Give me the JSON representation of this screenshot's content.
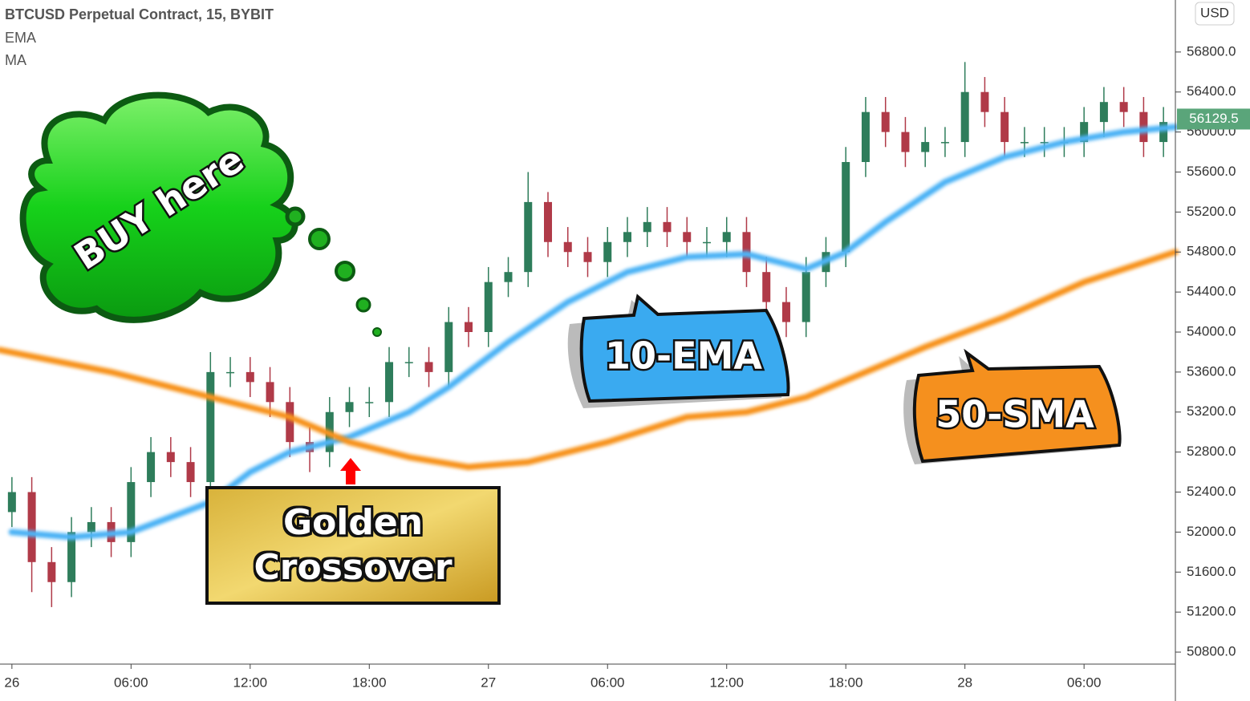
{
  "chart_data": {
    "type": "candlestick",
    "title": "BTCUSD Perpetual Contract, 15, BYBIT",
    "currency": "USD",
    "last_price": 56129.5,
    "up_color": "#2e7d5b",
    "down_color": "#b03a48",
    "xlim": [
      -0.6,
      58.6
    ],
    "xticks": [
      {
        "value": 0,
        "label": "26"
      },
      {
        "value": 6,
        "label": "06:00"
      },
      {
        "value": 12,
        "label": "12:00"
      },
      {
        "value": 18,
        "label": "18:00"
      },
      {
        "value": 24,
        "label": "27"
      },
      {
        "value": 30,
        "label": "06:00"
      },
      {
        "value": 36,
        "label": "12:00"
      },
      {
        "value": 42,
        "label": "18:00"
      },
      {
        "value": 48,
        "label": "28"
      },
      {
        "value": 54,
        "label": "06:00"
      }
    ],
    "ylim": [
      50680,
      57320
    ],
    "yticks": [
      {
        "value": 50800,
        "label": "50800.0"
      },
      {
        "value": 51200,
        "label": "51200.0"
      },
      {
        "value": 51600,
        "label": "51600.0"
      },
      {
        "value": 52000,
        "label": "52000.0"
      },
      {
        "value": 52400,
        "label": "52400.0"
      },
      {
        "value": 52800,
        "label": "52800.0"
      },
      {
        "value": 53200,
        "label": "53200.0"
      },
      {
        "value": 53600,
        "label": "53600.0"
      },
      {
        "value": 54000,
        "label": "54000.0"
      },
      {
        "value": 54400,
        "label": "54400.0"
      },
      {
        "value": 54800,
        "label": "54800.0"
      },
      {
        "value": 55200,
        "label": "55200.0"
      },
      {
        "value": 55600,
        "label": "55600.0"
      },
      {
        "value": 56000,
        "label": "56000.0"
      },
      {
        "value": 56400,
        "label": "56400.0"
      },
      {
        "value": 56800,
        "label": "56800.0"
      }
    ],
    "candles": {
      "x": [
        0,
        1,
        2,
        3,
        4,
        5,
        6,
        7,
        8,
        9,
        10,
        11,
        12,
        13,
        14,
        15,
        16,
        17,
        18,
        19,
        20,
        21,
        22,
        23,
        24,
        25,
        26,
        27,
        28,
        29,
        30,
        31,
        32,
        33,
        34,
        35,
        36,
        37,
        38,
        39,
        40,
        41,
        42,
        43,
        44,
        45,
        46,
        47,
        48,
        49,
        50,
        51,
        52,
        53,
        54,
        55,
        56,
        57,
        58
      ],
      "open": [
        52200,
        52400,
        51700,
        51500,
        52000,
        52100,
        51900,
        52500,
        52800,
        52700,
        52500,
        53600,
        53600,
        53500,
        53300,
        52900,
        52800,
        53200,
        53300,
        53300,
        53700,
        53700,
        53600,
        54100,
        54000,
        54500,
        54600,
        55300,
        54900,
        54800,
        54700,
        54900,
        55000,
        55100,
        55000,
        54900,
        54900,
        55000,
        54600,
        54300,
        54100,
        54600,
        54800,
        55700,
        56200,
        56000,
        55800,
        55900,
        55900,
        56400,
        56200,
        55900,
        55900,
        55900,
        55900,
        56100,
        56300,
        56200,
        55900
      ],
      "high": [
        52550,
        52550,
        51850,
        52150,
        52250,
        52250,
        52650,
        52950,
        52950,
        52850,
        53800,
        53750,
        53750,
        53650,
        53450,
        53050,
        53350,
        53450,
        53450,
        53850,
        53850,
        53850,
        54250,
        54250,
        54650,
        54750,
        55600,
        55400,
        55050,
        54950,
        55050,
        55150,
        55250,
        55250,
        55150,
        55050,
        55150,
        55150,
        54750,
        54450,
        54750,
        54950,
        55850,
        56350,
        56350,
        56150,
        56050,
        56050,
        56700,
        56550,
        56350,
        56050,
        56050,
        56050,
        56250,
        56450,
        56450,
        56350,
        56250
      ],
      "low": [
        52050,
        51400,
        51250,
        51350,
        51850,
        51750,
        51750,
        52350,
        52550,
        52350,
        52350,
        53450,
        53350,
        53150,
        52750,
        52600,
        52650,
        53050,
        53150,
        53150,
        53550,
        53450,
        53450,
        53850,
        53850,
        54350,
        54450,
        54750,
        54650,
        54550,
        54550,
        54750,
        54850,
        54850,
        54750,
        54750,
        54750,
        54450,
        54150,
        53950,
        53950,
        54450,
        54650,
        55550,
        55850,
        55650,
        55650,
        55750,
        55750,
        56050,
        55750,
        55750,
        55750,
        55750,
        55750,
        55950,
        56050,
        55750,
        55750
      ],
      "close": [
        52400,
        51700,
        51500,
        52000,
        52100,
        51900,
        52500,
        52800,
        52700,
        52500,
        53600,
        53600,
        53500,
        53300,
        52900,
        52800,
        53200,
        53300,
        53300,
        53700,
        53700,
        53600,
        54100,
        54000,
        54500,
        54600,
        55300,
        54900,
        54800,
        54700,
        54900,
        55000,
        55100,
        55000,
        54900,
        54900,
        55000,
        54600,
        54300,
        54100,
        54600,
        54800,
        55700,
        56200,
        56000,
        55800,
        55900,
        55900,
        56400,
        56200,
        55900,
        55900,
        55900,
        55900,
        56100,
        56300,
        56200,
        55900,
        56100
      ]
    },
    "series": [
      {
        "name": "EMA",
        "color": "#4db3f5",
        "x": [
          0,
          3,
          6,
          10,
          12,
          14,
          17,
          20,
          22,
          25,
          28,
          31,
          34,
          37,
          40,
          42,
          44,
          47,
          50,
          53,
          56,
          58.6
        ],
        "values": [
          52000,
          51950,
          52000,
          52300,
          52600,
          52800,
          52950,
          53200,
          53450,
          53900,
          54300,
          54600,
          54750,
          54780,
          54630,
          54800,
          55100,
          55500,
          55750,
          55900,
          56000,
          56050
        ]
      },
      {
        "name": "MA",
        "color": "#f7931a",
        "x": [
          -0.6,
          5,
          10,
          14,
          17,
          20,
          23,
          26,
          30,
          34,
          37,
          40,
          43,
          46,
          50,
          54,
          58.6
        ],
        "values": [
          53820,
          53600,
          53350,
          53150,
          52900,
          52750,
          52650,
          52700,
          52900,
          53150,
          53200,
          53350,
          53600,
          53850,
          54150,
          54500,
          54800
        ]
      }
    ],
    "annotations": [
      "BUY here",
      "10-EMA",
      "50-SMA",
      "Golden Crossover"
    ]
  }
}
